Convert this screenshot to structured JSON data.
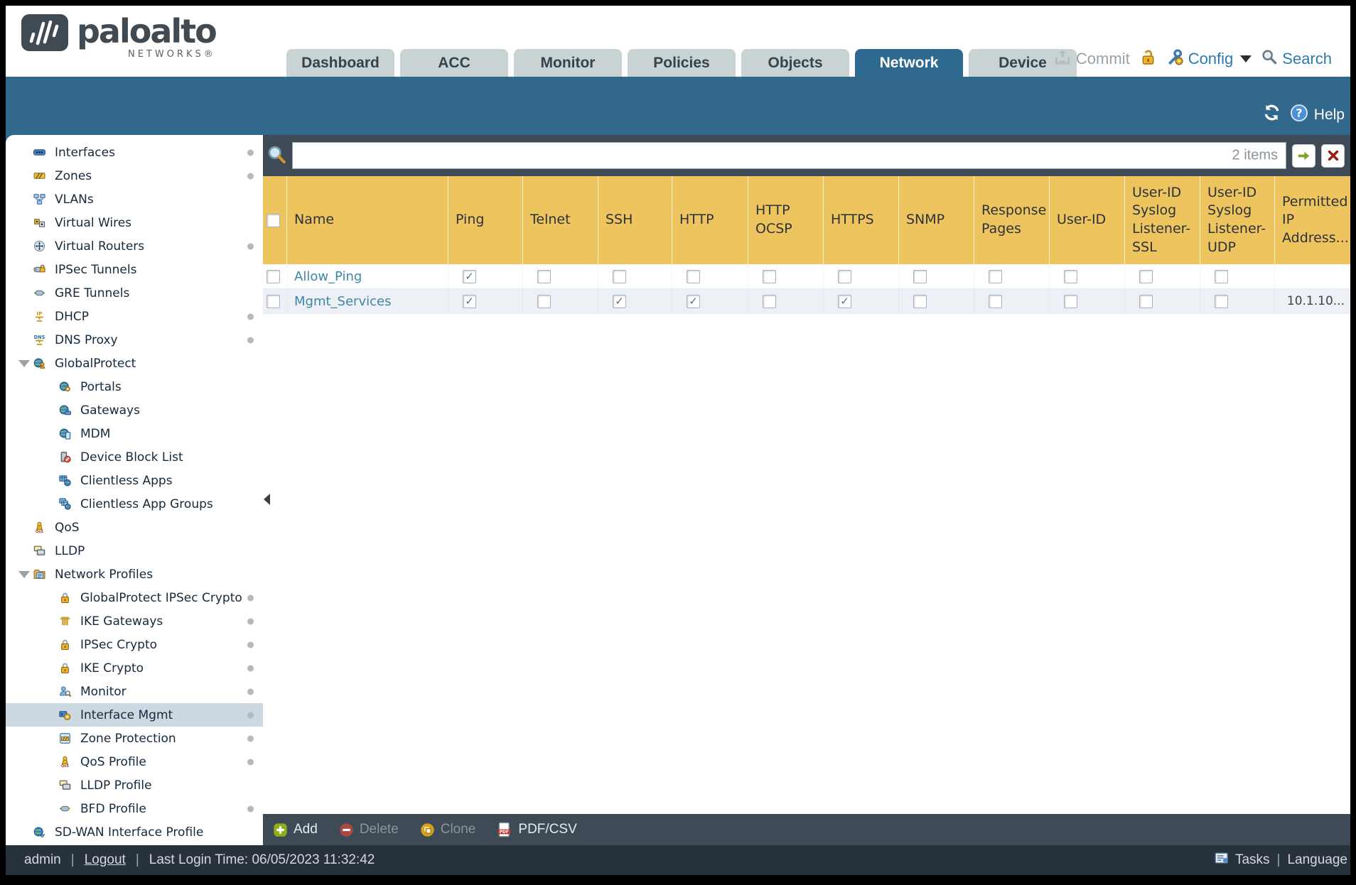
{
  "colors": {
    "band_teal": "#31688c",
    "active_tab": "#2e6a90",
    "table_header_gold": "#eec45f",
    "selected_row": "#ccd9e3",
    "link": "#3e87a8"
  },
  "header": {
    "brand": {
      "name": "paloalto",
      "sub": "NETWORKS®"
    },
    "tabs": [
      {
        "label": "Dashboard",
        "active": false
      },
      {
        "label": "ACC",
        "active": false
      },
      {
        "label": "Monitor",
        "active": false
      },
      {
        "label": "Policies",
        "active": false
      },
      {
        "label": "Objects",
        "active": false
      },
      {
        "label": "Network",
        "active": true
      },
      {
        "label": "Device",
        "active": false
      }
    ],
    "actions": {
      "commit": "Commit",
      "config": "Config",
      "search": "Search"
    }
  },
  "band": {
    "help": "Help"
  },
  "sidebar": {
    "items": [
      {
        "label": "Interfaces",
        "icon": "interfaces",
        "level": 0,
        "dot": true
      },
      {
        "label": "Zones",
        "icon": "zones",
        "level": 0,
        "dot": true
      },
      {
        "label": "VLANs",
        "icon": "vlans",
        "level": 0
      },
      {
        "label": "Virtual Wires",
        "icon": "virtual-wires",
        "level": 0
      },
      {
        "label": "Virtual Routers",
        "icon": "virtual-routers",
        "level": 0,
        "dot": true
      },
      {
        "label": "IPSec Tunnels",
        "icon": "ipsec-tunnels",
        "level": 0
      },
      {
        "label": "GRE Tunnels",
        "icon": "gre-tunnels",
        "level": 0
      },
      {
        "label": "DHCP",
        "icon": "dhcp",
        "level": 0,
        "dot": true
      },
      {
        "label": "DNS Proxy",
        "icon": "dns-proxy",
        "level": 0,
        "dot": true
      },
      {
        "label": "GlobalProtect",
        "icon": "globalprotect",
        "level": 0,
        "expanded": true
      },
      {
        "label": "Portals",
        "icon": "gp-portals",
        "level": 1
      },
      {
        "label": "Gateways",
        "icon": "gp-gateways",
        "level": 1
      },
      {
        "label": "MDM",
        "icon": "mdm",
        "level": 1
      },
      {
        "label": "Device Block List",
        "icon": "device-block-list",
        "level": 1
      },
      {
        "label": "Clientless Apps",
        "icon": "clientless-apps",
        "level": 1
      },
      {
        "label": "Clientless App Groups",
        "icon": "clientless-app-groups",
        "level": 1
      },
      {
        "label": "QoS",
        "icon": "qos",
        "level": 0
      },
      {
        "label": "LLDP",
        "icon": "lldp",
        "level": 0
      },
      {
        "label": "Network Profiles",
        "icon": "network-profiles",
        "level": 0,
        "expanded": true
      },
      {
        "label": "GlobalProtect IPSec Crypto",
        "icon": "lock",
        "level": 1,
        "dot": true
      },
      {
        "label": "IKE Gateways",
        "icon": "ike-gateways",
        "level": 1,
        "dot": true
      },
      {
        "label": "IPSec Crypto",
        "icon": "lock",
        "level": 1,
        "dot": true
      },
      {
        "label": "IKE Crypto",
        "icon": "lock",
        "level": 1,
        "dot": true
      },
      {
        "label": "Monitor",
        "icon": "monitor-profile",
        "level": 1,
        "dot": true
      },
      {
        "label": "Interface Mgmt",
        "icon": "interface-mgmt",
        "level": 1,
        "selected": true,
        "dot": true
      },
      {
        "label": "Zone Protection",
        "icon": "zone-protection",
        "level": 1,
        "dot": true
      },
      {
        "label": "QoS Profile",
        "icon": "qos-profile",
        "level": 1,
        "dot": true
      },
      {
        "label": "LLDP Profile",
        "icon": "lldp-profile",
        "level": 1
      },
      {
        "label": "BFD Profile",
        "icon": "bfd-profile",
        "level": 1,
        "dot": true
      },
      {
        "label": "SD-WAN Interface Profile",
        "icon": "sd-wan",
        "level": 0
      }
    ]
  },
  "filter": {
    "value": "",
    "items_count": "2 items"
  },
  "table": {
    "columns": [
      "Name",
      "Ping",
      "Telnet",
      "SSH",
      "HTTP",
      "HTTP OCSP",
      "HTTPS",
      "SNMP",
      "Response Pages",
      "User-ID",
      "User-ID Syslog Listener-SSL",
      "User-ID Syslog Listener-UDP",
      "Permitted IP Address..."
    ],
    "rows": [
      {
        "name": "Allow_Ping",
        "checks": [
          true,
          false,
          false,
          false,
          false,
          false,
          false,
          false,
          false,
          false,
          false
        ],
        "permitted_ip": ""
      },
      {
        "name": "Mgmt_Services",
        "checks": [
          true,
          false,
          true,
          true,
          false,
          true,
          false,
          false,
          false,
          false,
          false
        ],
        "permitted_ip": "10.1.10..."
      }
    ]
  },
  "bottom_toolbar": {
    "buttons": [
      {
        "label": "Add",
        "icon": "add-icon",
        "enabled": true
      },
      {
        "label": "Delete",
        "icon": "delete-icon",
        "enabled": false
      },
      {
        "label": "Clone",
        "icon": "clone-icon",
        "enabled": false
      },
      {
        "label": "PDF/CSV",
        "icon": "pdf-icon",
        "enabled": true
      }
    ]
  },
  "footer": {
    "user": "admin",
    "logout": "Logout",
    "last_login": "Last Login Time: 06/05/2023 11:32:42",
    "tasks": "Tasks",
    "language": "Language",
    "sep": "|"
  }
}
